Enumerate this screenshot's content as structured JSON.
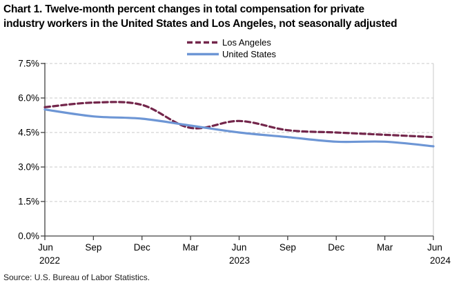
{
  "title_line1": "Chart 1. Twelve-month percent changes in total compensation for private",
  "title_line2": "industry workers in the United States and Los Angeles, not seasonally adjusted",
  "source_note": "Source: U.S. Bureau of Labor Statistics.",
  "legend": {
    "items": [
      {
        "label": "Los Angeles",
        "swatch": "dashed-line-swatch"
      },
      {
        "label": "United States",
        "swatch": "solid-line-swatch"
      }
    ]
  },
  "chart_data": {
    "type": "line",
    "title": "Chart 1. Twelve-month percent changes in total compensation for private industry workers in the United States and Los Angeles, not seasonally adjusted",
    "categories": [
      "Jun 2022",
      "Sep 2022",
      "Dec 2022",
      "Mar 2023",
      "Jun 2023",
      "Sep 2023",
      "Dec 2023",
      "Mar 2024",
      "Jun 2024"
    ],
    "series": [
      {
        "name": "Los Angeles",
        "values": [
          5.6,
          5.8,
          5.7,
          4.7,
          5.0,
          4.6,
          4.5,
          4.4,
          4.3
        ],
        "color": "#73264B",
        "style": "dashed"
      },
      {
        "name": "United States",
        "values": [
          5.5,
          5.2,
          5.1,
          4.8,
          4.5,
          4.3,
          4.1,
          4.1,
          3.9
        ],
        "color": "#6D96D5",
        "style": "solid"
      }
    ],
    "ylim": [
      0,
      7.5
    ],
    "yticks": [
      7.5,
      6.0,
      4.5,
      3.0,
      1.5,
      0.0
    ],
    "ytick_labels": [
      "7.5%",
      "6.0%",
      "4.5%",
      "3.0%",
      "1.5%",
      "0.0%"
    ],
    "x_tick_labels": [
      "Jun",
      "Sep",
      "Dec",
      "Mar",
      "Jun",
      "Sep",
      "Dec",
      "Mar",
      "Jun"
    ],
    "x_year_labels": [
      "2022",
      "2023",
      "2024"
    ],
    "grid": "horizontal-dashed",
    "gridline_color": "#C9C9C9",
    "axis_color": "#404040",
    "legend_position": "top-center",
    "ylabel": "",
    "xlabel": ""
  }
}
